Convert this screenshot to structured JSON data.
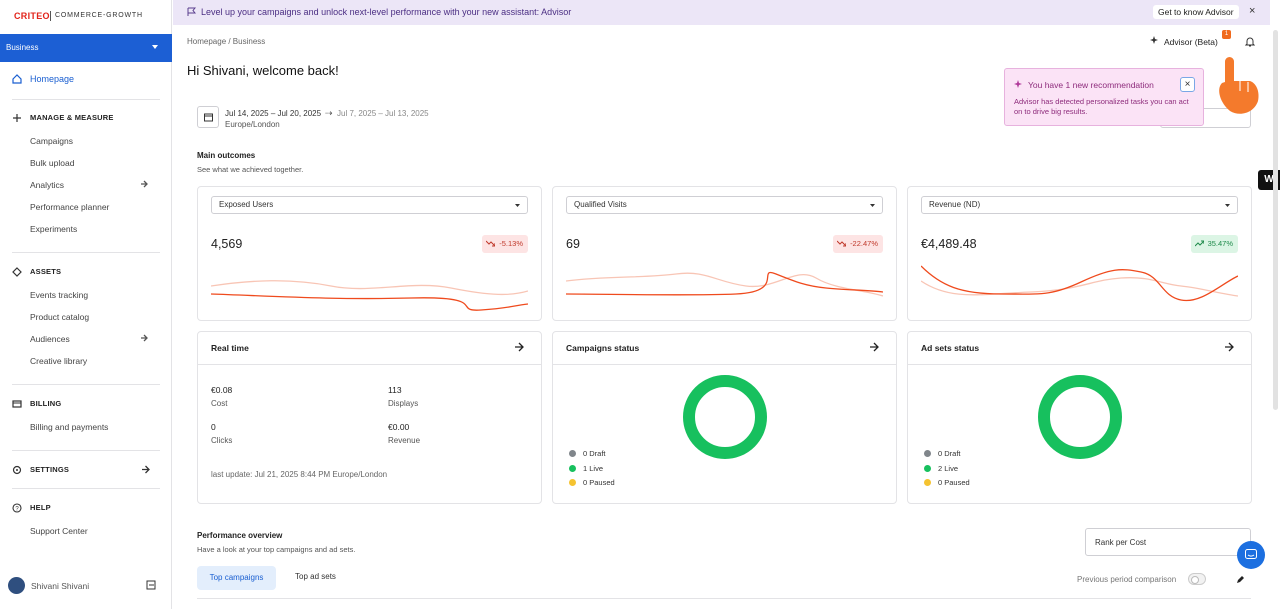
{
  "banner": {
    "text": "Level up your campaigns and unlock next-level performance with your new assistant: Advisor",
    "button": "Get to know Advisor"
  },
  "sidebar": {
    "logo": "CRITEO",
    "logo_sub": "COMMERCE-GROWTH",
    "account": "Business",
    "home": "Homepage",
    "sections": [
      {
        "title": "MANAGE & MEASURE",
        "items": [
          "Campaigns",
          "Bulk upload",
          "Analytics",
          "Performance planner",
          "Experiments"
        ]
      },
      {
        "title": "ASSETS",
        "items": [
          "Events tracking",
          "Product catalog",
          "Audiences",
          "Creative library"
        ]
      },
      {
        "title": "BILLING",
        "items": [
          "Billing and payments"
        ]
      },
      {
        "title": "SETTINGS",
        "items": []
      },
      {
        "title": "HELP",
        "items": [
          "Support Center"
        ]
      }
    ],
    "user": "Shivani Shivani"
  },
  "header": {
    "breadcrumb": "Homepage / Business",
    "advisor": "Advisor (Beta)",
    "advisor_badge": "1",
    "greeting": "Hi Shivani, welcome back!"
  },
  "popup": {
    "title": "You have 1 new recommendation",
    "body": "Advisor has detected personalized tasks you can act on to drive big results."
  },
  "date": {
    "range": "Jul 14, 2025 – Jul 20, 2025",
    "compare": "Jul 7, 2025 – Jul 13, 2025",
    "timezone": "Europe/London"
  },
  "outcomes": {
    "title": "Main outcomes",
    "subtitle": "See what we achieved together.",
    "cards": [
      {
        "metric": "Exposed Users",
        "value": "4,569",
        "change": "-5.13%"
      },
      {
        "metric": "Qualified Visits",
        "value": "69",
        "change": "-22.47%"
      },
      {
        "metric": "Revenue (ND)",
        "value": "€4,489.48",
        "change": "35.47%"
      }
    ]
  },
  "realtime": {
    "title": "Real time",
    "stats": [
      {
        "value": "€0.08",
        "label": "Cost"
      },
      {
        "value": "113",
        "label": "Displays"
      },
      {
        "value": "0",
        "label": "Clicks"
      },
      {
        "value": "€0.00",
        "label": "Revenue"
      }
    ],
    "last_update": "last update: Jul 21, 2025 8:44 PM Europe/London"
  },
  "status_cards": [
    {
      "title": "Campaigns status",
      "legend": [
        "0 Draft",
        "1 Live",
        "0 Paused"
      ]
    },
    {
      "title": "Ad sets status",
      "legend": [
        "0 Draft",
        "2 Live",
        "0 Paused"
      ]
    }
  ],
  "performance": {
    "title": "Performance overview",
    "subtitle": "Have a look at your top campaigns and ad sets.",
    "sort": "Rank per Cost",
    "tabs": [
      "Top campaigns",
      "Top ad sets"
    ],
    "comparison": "Previous period comparison"
  }
}
